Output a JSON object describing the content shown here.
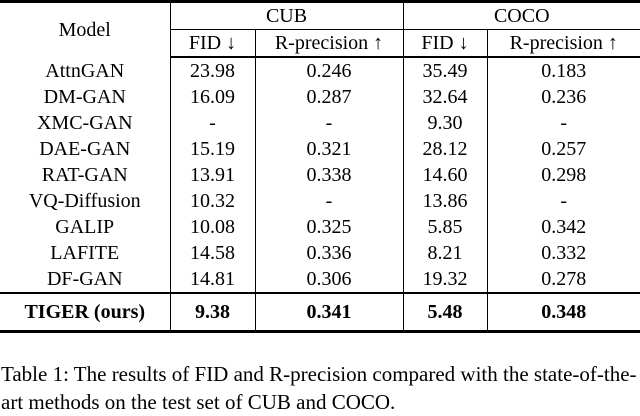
{
  "table": {
    "header": {
      "model": "Model",
      "cub": "CUB",
      "coco": "COCO",
      "fid": "FID ↓",
      "r_precision": "R-precision ↑"
    },
    "rows": [
      {
        "model": "AttnGAN",
        "cub_fid": "23.98",
        "cub_rp": "0.246",
        "coco_fid": "35.49",
        "coco_rp": "0.183"
      },
      {
        "model": "DM-GAN",
        "cub_fid": "16.09",
        "cub_rp": "0.287",
        "coco_fid": "32.64",
        "coco_rp": "0.236"
      },
      {
        "model": "XMC-GAN",
        "cub_fid": "-",
        "cub_rp": "-",
        "coco_fid": "9.30",
        "coco_rp": "-"
      },
      {
        "model": "DAE-GAN",
        "cub_fid": "15.19",
        "cub_rp": "0.321",
        "coco_fid": "28.12",
        "coco_rp": "0.257"
      },
      {
        "model": "RAT-GAN",
        "cub_fid": "13.91",
        "cub_rp": "0.338",
        "coco_fid": "14.60",
        "coco_rp": "0.298"
      },
      {
        "model": "VQ-Diffusion",
        "cub_fid": "10.32",
        "cub_rp": "-",
        "coco_fid": "13.86",
        "coco_rp": "-"
      },
      {
        "model": "GALIP",
        "cub_fid": "10.08",
        "cub_rp": "0.325",
        "coco_fid": "5.85",
        "coco_rp": "0.342"
      },
      {
        "model": "LAFITE",
        "cub_fid": "14.58",
        "cub_rp": "0.336",
        "coco_fid": "8.21",
        "coco_rp": "0.332"
      },
      {
        "model": "DF-GAN",
        "cub_fid": "14.81",
        "cub_rp": "0.306",
        "coco_fid": "19.32",
        "coco_rp": "0.278"
      }
    ],
    "ours_row": {
      "model": "TIGER (ours)",
      "cub_fid": "9.38",
      "cub_rp": "0.341",
      "coco_fid": "5.48",
      "coco_rp": "0.348"
    }
  },
  "caption": "Table 1: The results of FID and R-precision compared with the state-of-the-art methods on the test set of CUB and COCO."
}
